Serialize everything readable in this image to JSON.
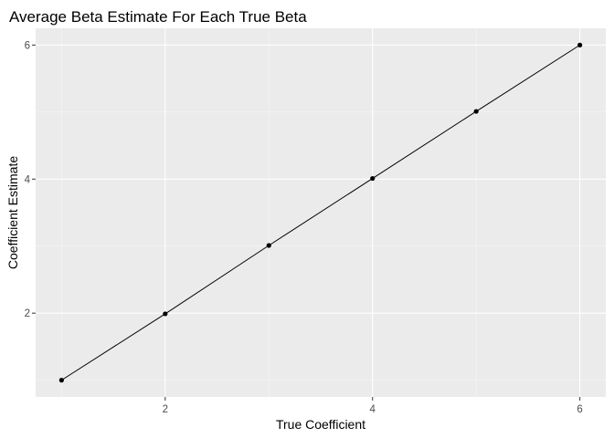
{
  "chart_data": {
    "type": "line",
    "title": "Average Beta Estimate For Each True Beta",
    "xlabel": "True Coefficient",
    "ylabel": "Coefficient Estimate",
    "x": [
      1,
      2,
      3,
      4,
      5,
      6
    ],
    "series": [
      {
        "values": [
          1.0,
          1.99,
          3.01,
          4.01,
          5.01,
          6.0
        ],
        "markers": "points",
        "line": true
      }
    ],
    "xlim": [
      0.75,
      6.25
    ],
    "ylim": [
      0.75,
      6.25
    ],
    "xticks": [
      2,
      4,
      6
    ],
    "yticks": [
      2,
      4,
      6
    ],
    "grid": true,
    "legend": "none",
    "colors": {
      "panel_bg": "#ebebeb",
      "grid_major": "#ffffff",
      "grid_minor": "#f5f5f5",
      "line": "#000000",
      "point": "#000000",
      "tick_label": "#4d4d4d",
      "tick_mark": "#333333"
    }
  }
}
